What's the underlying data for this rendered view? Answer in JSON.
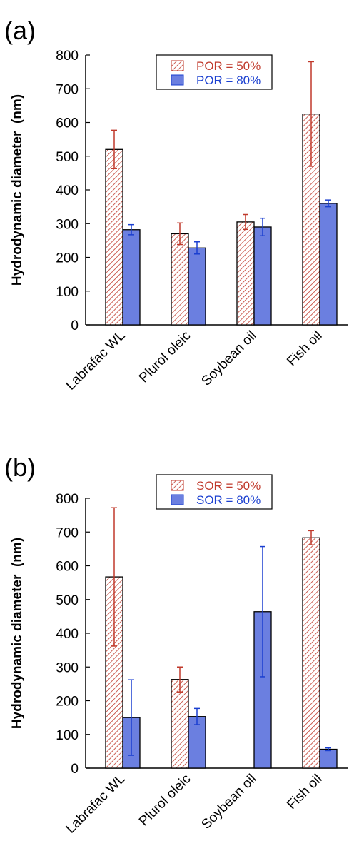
{
  "chart_data": [
    {
      "type": "bar",
      "panel_label": "(a)",
      "ylabel": "Hydrodynamic diameter  (nm)",
      "xlabel": "",
      "ylim": [
        0,
        800
      ],
      "yticks": [
        0,
        100,
        200,
        300,
        400,
        500,
        600,
        700,
        800
      ],
      "categories": [
        "Labrafac WL",
        "Plurol oleic",
        "Soybean oil",
        "Fish oil"
      ],
      "legend_position": "top-center",
      "grid": false,
      "series": [
        {
          "name": "POR = 50%",
          "pattern": "hatched",
          "color": "#c0392b",
          "values": [
            520,
            270,
            305,
            625
          ],
          "errors": [
            57,
            32,
            22,
            155
          ]
        },
        {
          "name": "POR = 80%",
          "pattern": "solid",
          "color": "#6b7fe0",
          "error_color": "#1a3fd0",
          "values": [
            282,
            228,
            290,
            360
          ],
          "errors": [
            15,
            18,
            26,
            10
          ]
        }
      ]
    },
    {
      "type": "bar",
      "panel_label": "(b)",
      "ylabel": "Hydrodynamic diameter  (nm)",
      "xlabel": "",
      "ylim": [
        0,
        800
      ],
      "yticks": [
        0,
        100,
        200,
        300,
        400,
        500,
        600,
        700,
        800
      ],
      "categories": [
        "Labrafac WL",
        "Plurol oleic",
        "Soybean oil",
        "Fish oil"
      ],
      "legend_position": "top-center",
      "grid": false,
      "series": [
        {
          "name": "SOR = 50%",
          "pattern": "hatched",
          "color": "#c0392b",
          "values": [
            567,
            263,
            null,
            683
          ],
          "errors": [
            205,
            37,
            null,
            21
          ]
        },
        {
          "name": "SOR = 80%",
          "pattern": "solid",
          "color": "#6b7fe0",
          "error_color": "#1a3fd0",
          "values": [
            150,
            153,
            464,
            56
          ],
          "errors": [
            112,
            24,
            193,
            4
          ]
        }
      ]
    }
  ]
}
